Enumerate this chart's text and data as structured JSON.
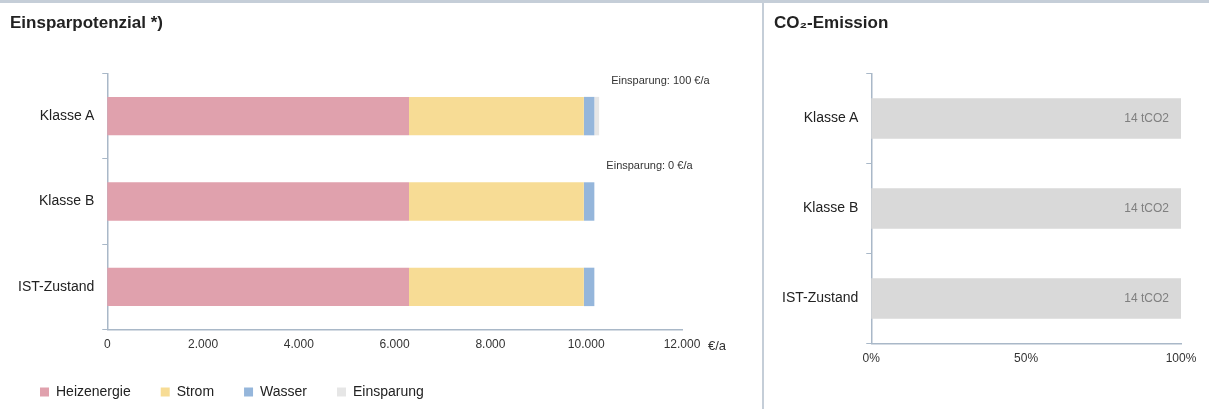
{
  "chart_data": [
    {
      "type": "bar",
      "orientation": "horizontal",
      "stacked": true,
      "title": "Einsparpotenzial *)",
      "xlabel": "€/a",
      "categories": [
        "Klasse A",
        "Klasse B",
        "IST-Zustand"
      ],
      "series": [
        {
          "name": "Heizenergie",
          "color": "#e0a1ad",
          "values": [
            6300,
            6300,
            6300
          ]
        },
        {
          "name": "Strom",
          "color": "#f7dc95",
          "values": [
            3650,
            3650,
            3650
          ]
        },
        {
          "name": "Wasser",
          "color": "#95b6db",
          "values": [
            220,
            220,
            220
          ]
        },
        {
          "name": "Einsparung",
          "color": "#e6e6e6",
          "values": [
            100,
            0,
            0
          ]
        }
      ],
      "xlim": [
        0,
        12000
      ],
      "xticks": [
        0,
        {
          "value": 2000,
          "label": "2.000"
        },
        {
          "value": 4000,
          "label": "4.000"
        },
        {
          "value": 6000,
          "label": "6.000"
        },
        {
          "value": 8000,
          "label": "8.000"
        },
        {
          "value": 10000,
          "label": "10.000"
        },
        {
          "value": 12000,
          "label": "12.000"
        }
      ],
      "annotations": [
        {
          "text": "Einsparung: 100 €/a",
          "x": 10270,
          "y": "Klasse A"
        },
        {
          "text": "Einsparung: 0 €/a",
          "x": 10170,
          "y": "Klasse B"
        }
      ],
      "legend": "bottom"
    },
    {
      "type": "bar",
      "orientation": "horizontal",
      "title": "CO₂-Emission",
      "categories": [
        "Klasse A",
        "Klasse B",
        "IST-Zustand"
      ],
      "values": [
        100,
        100,
        100
      ],
      "color": "#d9d9d9",
      "annotations": [
        {
          "text": "14 tCO2",
          "x": 100,
          "y": "Klasse A"
        },
        {
          "text": "14 tCO2",
          "x": 100,
          "y": "Klasse B"
        },
        {
          "text": "14 tCO2",
          "x": 100,
          "y": "IST-Zustand"
        }
      ],
      "xlim": [
        0,
        100
      ],
      "xticks": [
        {
          "value": 0,
          "label": "0%"
        },
        {
          "value": 50,
          "label": "50%"
        },
        {
          "value": 100,
          "label": "100%"
        }
      ]
    }
  ]
}
